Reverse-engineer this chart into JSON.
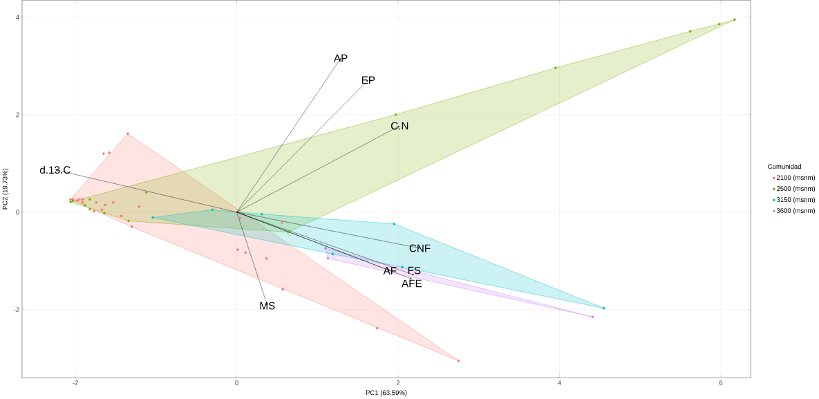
{
  "chart_data": {
    "type": "scatter",
    "xlabel": "PC1 (63.59%)",
    "ylabel": "PC2 (19.73%)",
    "legend_title": "Comunidad",
    "xlim": [
      -2.66,
      6.37
    ],
    "ylim": [
      -3.4,
      4.35
    ],
    "xticks": [
      -2,
      0,
      2,
      4,
      6
    ],
    "yticks": [
      -2,
      0,
      2,
      4
    ],
    "grid": true,
    "legend": "right",
    "series": [
      {
        "type": "area",
        "marker": "none",
        "color": "#F8766D",
        "x": [
          -1.35,
          -2.06,
          -1.3,
          2.75
        ],
        "values": [
          1.61,
          0.26,
          -0.3,
          -3.05
        ]
      },
      {
        "type": "area",
        "marker": "none",
        "color": "#7CAE00",
        "x": [
          -2.06,
          1.97,
          3.95,
          5.62,
          5.98,
          6.17,
          0.64,
          -1.34
        ],
        "values": [
          0.21,
          2.0,
          2.96,
          3.71,
          3.86,
          3.95,
          -0.41,
          -0.18
        ]
      },
      {
        "type": "area",
        "marker": "none",
        "color": "#00BFC4",
        "x": [
          -1.04,
          -0.3,
          0.31,
          1.95,
          4.55,
          2.05,
          1.19
        ],
        "values": [
          -0.11,
          0.05,
          -0.04,
          -0.24,
          -1.97,
          -1.13,
          -0.86
        ]
      },
      {
        "type": "area",
        "marker": "none",
        "color": "#C77CFF",
        "x": [
          1.1,
          4.41,
          1.13
        ],
        "values": [
          -0.74,
          -2.15,
          -0.95
        ]
      },
      {
        "name": "2100 (msnm)",
        "marker": "circle",
        "color": "#F8766D",
        "x": [
          -1.35,
          -1.65,
          -1.58,
          -2.06,
          -2.03,
          -1.98,
          -1.95,
          -1.91,
          -1.91,
          -1.74,
          -1.63,
          -1.53,
          -1.67,
          -1.21,
          -1.43,
          -1.77,
          -1.3,
          0.01,
          0.11,
          0.37,
          0.04,
          0.56,
          1.74,
          2.75,
          0.57
        ],
        "values": [
          1.61,
          1.2,
          1.22,
          0.26,
          0.26,
          0.24,
          0.26,
          0.26,
          0.2,
          0.2,
          0.15,
          0.2,
          0.05,
          0.11,
          -0.08,
          0.02,
          -0.3,
          -0.77,
          -0.83,
          -0.95,
          -0.12,
          -0.21,
          -2.38,
          -3.05,
          -1.58
        ]
      },
      {
        "name": "2500 (msnm)",
        "marker": "circle",
        "color": "#7CAE00",
        "x": [
          -2.06,
          -2.03,
          -1.82,
          -1.12,
          -1.88,
          -1.82,
          -1.64,
          -1.34,
          0.64,
          3.95,
          5.62,
          5.98,
          6.17,
          1.97
        ],
        "values": [
          0.21,
          0.23,
          0.26,
          0.41,
          0.14,
          0.06,
          -0.02,
          -0.18,
          -0.41,
          2.96,
          3.71,
          3.86,
          3.95,
          2.0
        ]
      },
      {
        "name": "3150 (msnm)",
        "marker": "circle",
        "color": "#00BFC4",
        "x": [
          -1.04,
          -0.3,
          0.31,
          1.95,
          1.19,
          2.05,
          4.55
        ],
        "values": [
          -0.11,
          0.05,
          -0.04,
          -0.24,
          -0.86,
          -1.13,
          -1.97
        ]
      },
      {
        "name": "3600 (msnm)",
        "marker": "circle",
        "color": "#C77CFF",
        "x": [
          1.13,
          1.1,
          4.41
        ],
        "values": [
          -0.95,
          -0.74,
          -2.15
        ]
      }
    ],
    "annotations": [
      {
        "text": "AP",
        "x": 1.29,
        "y": 3.16
      },
      {
        "text": "EP",
        "x": 1.63,
        "y": 2.71
      },
      {
        "text": "C.N",
        "x": 2.02,
        "y": 1.77
      },
      {
        "text": "d.13.C",
        "x": -2.25,
        "y": 0.87
      },
      {
        "text": "CNF",
        "x": 2.27,
        "y": -0.74
      },
      {
        "text": "AF",
        "x": 1.9,
        "y": -1.2
      },
      {
        "text": "FS",
        "x": 2.2,
        "y": -1.29
      },
      {
        "text": "AFE",
        "x": 2.17,
        "y": -1.37
      },
      {
        "text": "MS",
        "x": 0.38,
        "y": -1.92
      }
    ]
  }
}
